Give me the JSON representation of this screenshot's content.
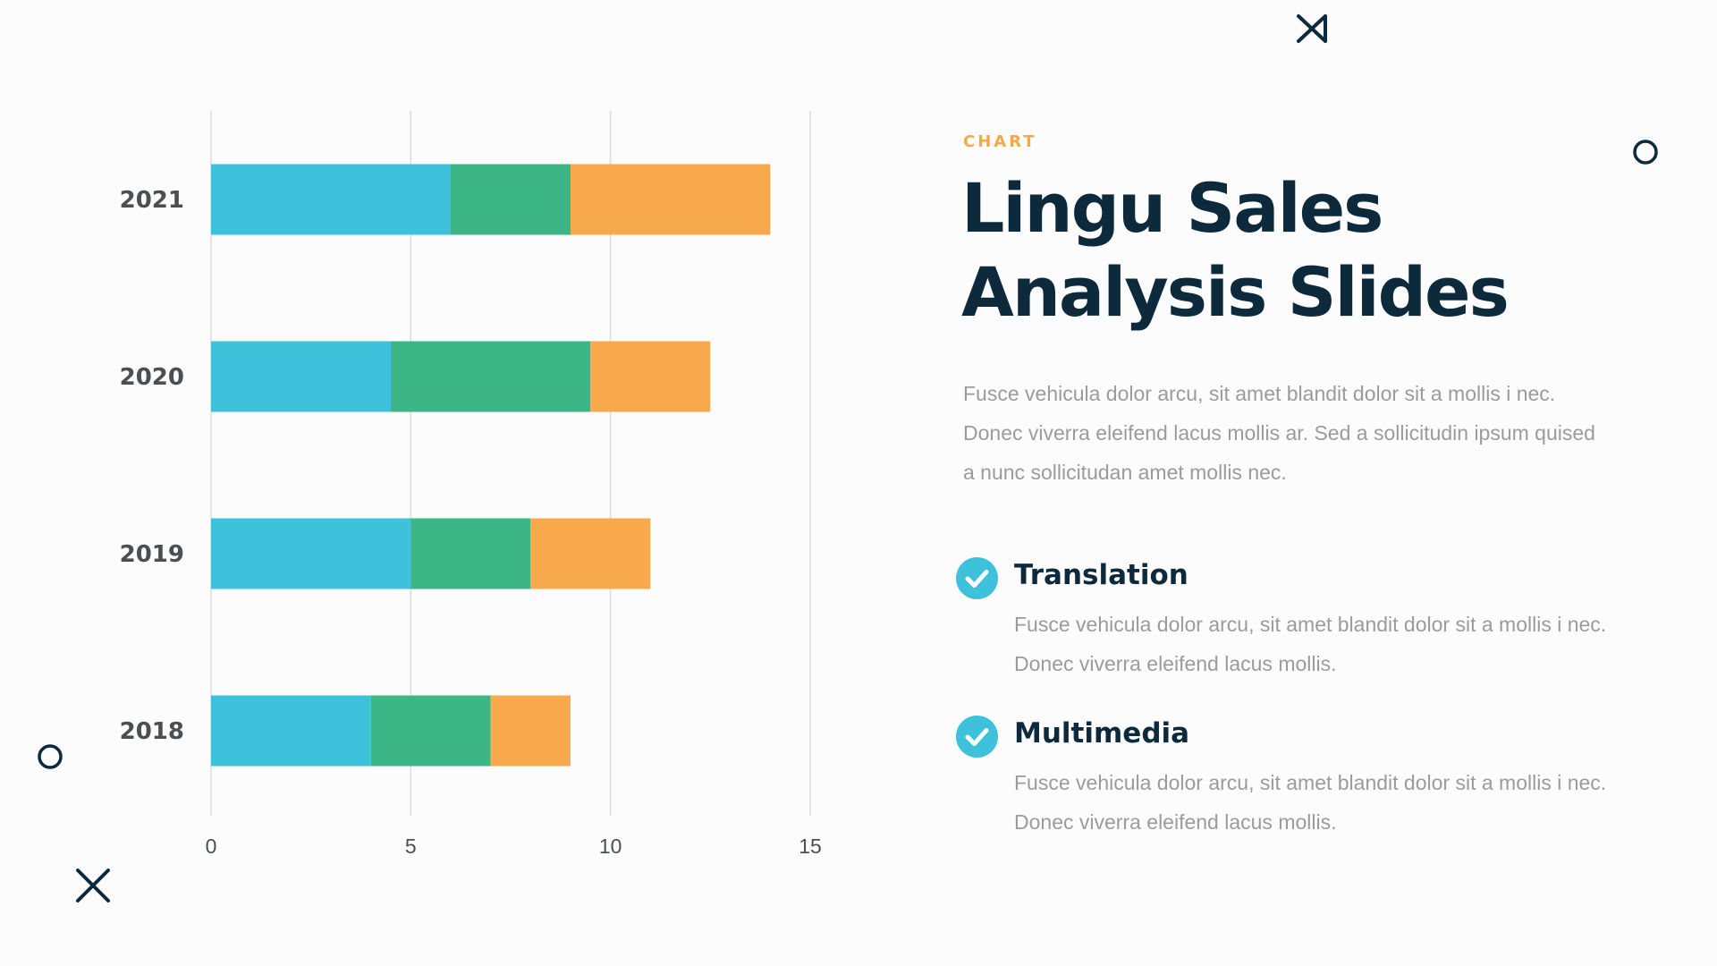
{
  "eyebrow": "CHART",
  "title": "Lingu Sales Analysis Slides",
  "description": "Fusce vehicula dolor arcu, sit amet blandit dolor sit a mollis i nec. Donec viverra eleifend lacus mollis ar. Sed a sollicitudin ipsum quised a nunc sollicitudan amet mollis nec.",
  "features": [
    {
      "title": "Translation",
      "text": "Fusce vehicula dolor arcu, sit amet blandit dolor sit a mollis i nec. Donec viverra eleifend lacus mollis."
    },
    {
      "title": "Multimedia",
      "text": "Fusce vehicula dolor arcu, sit amet blandit dolor sit a mollis i nec. Donec viverra eleifend lacus mollis."
    }
  ],
  "icons": {
    "check": "check-circle-icon",
    "cross": "x-mark-icon",
    "ring": "circle-outline-icon"
  },
  "colors": {
    "series": [
      "#3ec1db",
      "#3cb686",
      "#f7a94c"
    ],
    "accent": "#f5a84b",
    "heading": "#0d2a3d",
    "check": "#3ec1db"
  },
  "chart_data": {
    "type": "bar",
    "orientation": "horizontal",
    "stacked": true,
    "categories": [
      "2021",
      "2020",
      "2019",
      "2018"
    ],
    "series": [
      {
        "values": [
          6,
          4.5,
          5,
          4
        ]
      },
      {
        "values": [
          3,
          5,
          3,
          3
        ]
      },
      {
        "values": [
          5,
          3,
          3,
          2
        ]
      }
    ],
    "xlim": [
      0,
      15
    ],
    "xticks": [
      0,
      5,
      10,
      15
    ],
    "grid": true,
    "legend": "none"
  }
}
